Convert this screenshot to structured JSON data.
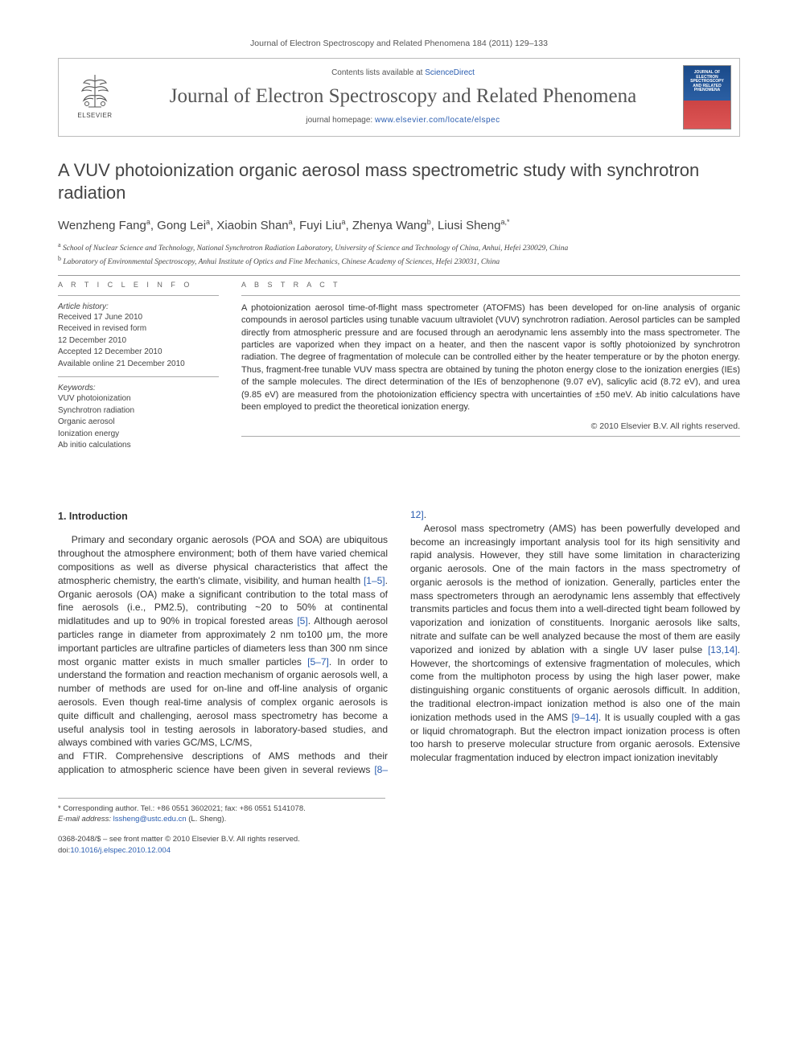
{
  "running_head": "Journal of Electron Spectroscopy and Related Phenomena 184 (2011) 129–133",
  "masthead": {
    "contents_prefix": "Contents lists available at ",
    "contents_link": "ScienceDirect",
    "journal_name": "Journal of Electron Spectroscopy and Related Phenomena",
    "homepage_prefix": "journal homepage: ",
    "homepage_url": "www.elsevier.com/locate/elspec",
    "publisher_word": "ELSEVIER",
    "cover_text": "JOURNAL OF ELECTRON SPECTROSCOPY AND RELATED PHENOMENA"
  },
  "article": {
    "title": "A VUV photoionization organic aerosol mass spectrometric study with synchrotron radiation",
    "authors_html": "Wenzheng Fang<sup>a</sup>, Gong Lei<sup>a</sup>, Xiaobin Shan<sup>a</sup>, Fuyi Liu<sup>a</sup>, Zhenya Wang<sup>b</sup>, Liusi Sheng<sup>a,*</sup>",
    "affiliations": [
      "a School of Nuclear Science and Technology, National Synchrotron Radiation Laboratory, University of Science and Technology of China, Anhui, Hefei 230029, China",
      "b Laboratory of Environmental Spectroscopy, Anhui Institute of Optics and Fine Mechanics, Chinese Academy of Sciences, Hefei 230031, China"
    ]
  },
  "article_info": {
    "head": "A R T I C L E   I N F O",
    "history_label": "Article history:",
    "history": [
      "Received 17 June 2010",
      "Received in revised form",
      "12 December 2010",
      "Accepted 12 December 2010",
      "Available online 21 December 2010"
    ],
    "keywords_label": "Keywords:",
    "keywords": [
      "VUV photoionization",
      "Synchrotron radiation",
      "Organic aerosol",
      "Ionization energy",
      "Ab initio calculations"
    ]
  },
  "abstract": {
    "head": "A B S T R A C T",
    "text": "A photoionization aerosol time-of-flight mass spectrometer (ATOFMS) has been developed for on-line analysis of organic compounds in aerosol particles using tunable vacuum ultraviolet (VUV) synchrotron radiation. Aerosol particles can be sampled directly from atmospheric pressure and are focused through an aerodynamic lens assembly into the mass spectrometer. The particles are vaporized when they impact on a heater, and then the nascent vapor is softly photoionized by synchrotron radiation. The degree of fragmentation of molecule can be controlled either by the heater temperature or by the photon energy. Thus, fragment-free tunable VUV mass spectra are obtained by tuning the photon energy close to the ionization energies (IEs) of the sample molecules. The direct determination of the IEs of benzophenone (9.07 eV), salicylic acid (8.72 eV), and urea (9.85 eV) are measured from the photoionization efficiency spectra with uncertainties of ±50 meV. Ab initio calculations have been employed to predict the theoretical ionization energy.",
    "copyright": "© 2010 Elsevier B.V. All rights reserved."
  },
  "body": {
    "section_heading": "1.  Introduction",
    "p1": "Primary and secondary organic aerosols (POA and SOA) are ubiquitous throughout the atmosphere environment; both of them have varied chemical compositions as well as diverse physical characteristics that affect the atmospheric chemistry, the earth's climate, visibility, and human health [1–5]. Organic aerosols (OA) make a significant contribution to the total mass of fine aerosols (i.e., PM2.5), contributing ~20 to 50% at continental midlatitudes and up to 90% in tropical forested areas [5]. Although aerosol particles range in diameter from approximately 2 nm to100 μm, the more important particles are ultrafine particles of diameters less than 300 nm since most organic matter exists in much smaller particles [5–7]. In order to understand the formation and reaction mechanism of organic aerosols well, a number of methods are used for on-line and off-line analysis of organic aerosols. Even though real-time analysis of complex organic aerosols is quite difficult and challenging, aerosol mass spectrometry has become a useful analysis tool in testing aerosols in laboratory-based studies, and always combined with varies GC/MS, LC/MS,",
    "p2": "and FTIR. Comprehensive descriptions of AMS methods and their application to atmospheric science have been given in several reviews [8–12].",
    "p3": "Aerosol mass spectrometry (AMS) has been powerfully developed and become an increasingly important analysis tool for its high sensitivity and rapid analysis. However, they still have some limitation in characterizing organic aerosols. One of the main factors in the mass spectrometry of organic aerosols is the method of ionization. Generally, particles enter the mass spectrometers through an aerodynamic lens assembly that effectively transmits particles and focus them into a well-directed tight beam followed by vaporization and ionization of constituents. Inorganic aerosols like salts, nitrate and sulfate can be well analyzed because the most of them are easily vaporized and ionized by ablation with a single UV laser pulse [13,14]. However, the shortcomings of extensive fragmentation of molecules, which come from the multiphoton process by using the high laser power, make distinguishing organic constituents of organic aerosols difficult. In addition, the traditional electron-impact ionization method is also one of the main ionization methods used in the AMS [9–14]. It is usually coupled with a gas or liquid chromatograph. But the electron impact ionization process is often too harsh to preserve molecular structure from organic aerosols. Extensive molecular fragmentation induced by electron impact ionization inevitably"
  },
  "footnotes": {
    "corresponding": "* Corresponding author. Tel.: +86 0551 3602021; fax: +86 0551 5141078.",
    "email_label": "E-mail address:",
    "email": "lssheng@ustc.edu.cn",
    "email_who": "(L. Sheng)."
  },
  "bottom": {
    "issn_line": "0368-2048/$ – see front matter © 2010 Elsevier B.V. All rights reserved.",
    "doi_label": "doi:",
    "doi": "10.1016/j.elspec.2010.12.004"
  },
  "colors": {
    "link": "#2a5db0",
    "rule": "#999999",
    "text": "#333333"
  }
}
